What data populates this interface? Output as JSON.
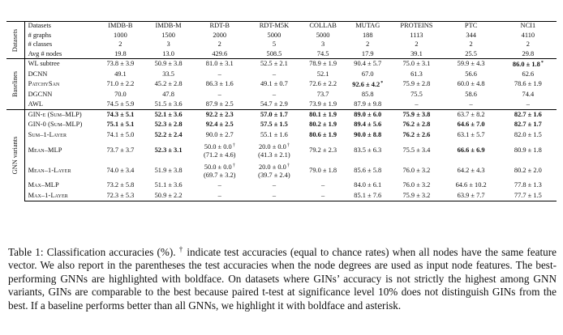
{
  "table": {
    "group_labels": {
      "datasets": "Datasets",
      "baselines": "Baselines",
      "gnn": "GNN variants"
    },
    "columns": [
      "IMDB-B",
      "IMDB-M",
      "RDT-B",
      "RDT-M5K",
      "COLLAB",
      "MUTAG",
      "PROTEINS",
      "PTC",
      "NCI1"
    ],
    "dataset_rows": [
      {
        "label": "Datasets",
        "values": [
          "IMDB-B",
          "IMDB-M",
          "RDT-B",
          "RDT-M5K",
          "COLLAB",
          "MUTAG",
          "PROTEINS",
          "PTC",
          "NCI1"
        ]
      },
      {
        "label": "# graphs",
        "values": [
          "1000",
          "1500",
          "2000",
          "5000",
          "5000",
          "188",
          "1113",
          "344",
          "4110"
        ]
      },
      {
        "label": "# classes",
        "values": [
          "2",
          "3",
          "2",
          "5",
          "3",
          "2",
          "2",
          "2",
          "2"
        ]
      },
      {
        "label": "Avg # nodes",
        "values": [
          "19.8",
          "13.0",
          "429.6",
          "508.5",
          "74.5",
          "17.9",
          "39.1",
          "25.5",
          "29.8"
        ]
      }
    ],
    "baseline_rows": [
      {
        "label": "WL subtree",
        "values": [
          "73.8 ± 3.9",
          "50.9 ± 3.8",
          "81.0 ± 3.1",
          "52.5 ± 2.1",
          "78.9 ± 1.9",
          "90.4 ± 5.7",
          "75.0 ± 3.1",
          "59.9 ± 4.3",
          "86.0 ± 1.8"
        ]
      },
      {
        "label": "DCNN",
        "values": [
          "49.1",
          "33.5",
          "–",
          "–",
          "52.1",
          "67.0",
          "61.3",
          "56.6",
          "62.6"
        ]
      },
      {
        "label": "PatchySan",
        "values": [
          "71.0 ± 2.2",
          "45.2 ± 2.8",
          "86.3 ± 1.6",
          "49.1 ± 0.7",
          "72.6 ± 2.2",
          "92.6 ± 4.2",
          "75.9 ± 2.8",
          "60.0 ± 4.8",
          "78.6 ± 1.9"
        ]
      },
      {
        "label": "DGCNN",
        "values": [
          "70.0",
          "47.8",
          "–",
          "–",
          "73.7",
          "85.8",
          "75.5",
          "58.6",
          "74.4"
        ]
      },
      {
        "label": "AWL",
        "values": [
          "74.5 ± 5.9",
          "51.5 ± 3.6",
          "87.9 ± 2.5",
          "54.7 ± 2.9",
          "73.9 ± 1.9",
          "87.9 ± 9.8",
          "–",
          "–",
          "–"
        ]
      }
    ],
    "gnn_rows": [
      {
        "label": "GIN-ε (Sum–MLP)",
        "values": [
          "74.3 ± 5.1",
          "52.1 ± 3.6",
          "92.2 ± 2.3",
          "57.0 ± 1.7",
          "80.1 ± 1.9",
          "89.0 ± 6.0",
          "75.9 ± 3.8",
          "63.7 ± 8.2",
          "82.7 ± 1.6"
        ]
      },
      {
        "label": "GIN-0 (Sum–MLP)",
        "values": [
          "75.1 ± 5.1",
          "52.3 ± 2.8",
          "92.4 ± 2.5",
          "57.5 ± 1.5",
          "80.2 ± 1.9",
          "89.4 ± 5.6",
          "76.2 ± 2.8",
          "64.6 ± 7.0",
          "82.7 ± 1.7"
        ]
      },
      {
        "label": "Sum–1-Layer",
        "values": [
          "74.1 ± 5.0",
          "52.2 ± 2.4",
          "90.0 ± 2.7",
          "55.1 ± 1.6",
          "80.6 ± 1.9",
          "90.0 ± 8.8",
          "76.2 ± 2.6",
          "63.1 ± 5.7",
          "82.0 ± 1.5"
        ]
      },
      {
        "label": "Mean–MLP",
        "values": [
          "73.7 ± 3.7",
          "52.3 ± 3.1",
          "50.0 ± 0.0",
          "20.0 ± 0.0",
          "79.2 ± 2.3",
          "83.5 ± 6.3",
          "75.5 ± 3.4",
          "66.6 ± 6.9",
          "80.9 ± 1.8"
        ],
        "paren": [
          "",
          "",
          "(71.2 ± 4.6)",
          "(41.3 ± 2.1)",
          "",
          "",
          "",
          "",
          ""
        ]
      },
      {
        "label": "Mean–1-Layer",
        "values": [
          "74.0 ± 3.4",
          "51.9 ± 3.8",
          "50.0 ± 0.0",
          "20.0 ± 0.0",
          "79.0 ± 1.8",
          "85.6 ± 5.8",
          "76.0 ± 3.2",
          "64.2 ± 4.3",
          "80.2 ± 2.0"
        ],
        "paren": [
          "",
          "",
          "(69.7 ± 3.2)",
          "(39.7 ± 2.4)",
          "",
          "",
          "",
          "",
          ""
        ]
      },
      {
        "label": "Max–MLP",
        "values": [
          "73.2 ± 5.8",
          "51.1 ± 3.6",
          "–",
          "–",
          "–",
          "84.0 ± 6.1",
          "76.0 ± 3.2",
          "64.6 ± 10.2",
          "77.8 ± 1.3"
        ]
      },
      {
        "label": "Max–1-Layer",
        "values": [
          "72.3 ± 5.3",
          "50.9 ± 2.2",
          "–",
          "–",
          "–",
          "85.1 ± 7.6",
          "75.9 ± 3.2",
          "63.9 ± 7.7",
          "77.7 ± 1.5"
        ]
      }
    ],
    "markers": {
      "asterisk": "*",
      "dagger": "†"
    }
  },
  "caption": {
    "lead": "Table 1: Classification accuracies (%).",
    "dagger": "†",
    "body": " indicate test accuracies (equal to chance rates) when all nodes have the same feature vector. We also report in the parentheses the test accuracies when the node degrees are used as input node features. The best-performing GNNs are highlighted with boldface. On datasets where GINs’ accuracy is not strictly the highest among GNN variants, GINs are comparable to the best because paired t-test at significance level 10% does not distinguish GINs from the best. If a baseline performs better than all GNNs, we highlight it with boldface and asterisk."
  }
}
